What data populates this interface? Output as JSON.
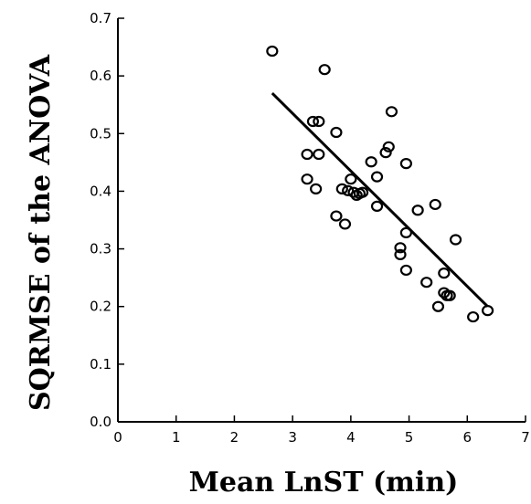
{
  "chart_data": {
    "type": "scatter",
    "title": "",
    "xlabel": "Mean LnST (min)",
    "ylabel": "SQRMSE of the ANOVA",
    "xlim": [
      0,
      7
    ],
    "ylim": [
      0,
      0.7
    ],
    "xticks": [
      0,
      1,
      2,
      3,
      4,
      5,
      6,
      7
    ],
    "yticks": [
      0.0,
      0.1,
      0.2,
      0.3,
      0.4,
      0.5,
      0.6,
      0.7
    ],
    "xtick_labels": [
      "0",
      "1",
      "2",
      "3",
      "4",
      "5",
      "6",
      "7"
    ],
    "ytick_labels": [
      "0.0",
      "0.1",
      "0.2",
      "0.3",
      "0.4",
      "0.5",
      "0.6",
      "0.7"
    ],
    "grid": false,
    "legend": "none",
    "marker": "open-circle",
    "color": "#000000",
    "points": [
      [
        2.65,
        0.643
      ],
      [
        3.55,
        0.611
      ],
      [
        3.35,
        0.521
      ],
      [
        3.45,
        0.521
      ],
      [
        3.75,
        0.502
      ],
      [
        4.7,
        0.538
      ],
      [
        3.25,
        0.464
      ],
      [
        3.45,
        0.464
      ],
      [
        4.35,
        0.451
      ],
      [
        4.6,
        0.467
      ],
      [
        4.65,
        0.477
      ],
      [
        4.95,
        0.448
      ],
      [
        4.45,
        0.425
      ],
      [
        3.25,
        0.421
      ],
      [
        3.4,
        0.404
      ],
      [
        3.85,
        0.404
      ],
      [
        3.95,
        0.401
      ],
      [
        4.0,
        0.421
      ],
      [
        4.05,
        0.398
      ],
      [
        4.1,
        0.393
      ],
      [
        4.15,
        0.396
      ],
      [
        4.2,
        0.398
      ],
      [
        4.45,
        0.374
      ],
      [
        5.15,
        0.367
      ],
      [
        5.45,
        0.377
      ],
      [
        3.75,
        0.357
      ],
      [
        3.9,
        0.343
      ],
      [
        4.95,
        0.328
      ],
      [
        4.85,
        0.302
      ],
      [
        4.85,
        0.29
      ],
      [
        5.8,
        0.316
      ],
      [
        4.95,
        0.263
      ],
      [
        5.3,
        0.242
      ],
      [
        5.6,
        0.258
      ],
      [
        5.6,
        0.224
      ],
      [
        5.65,
        0.219
      ],
      [
        5.7,
        0.219
      ],
      [
        5.5,
        0.2
      ],
      [
        6.1,
        0.182
      ],
      [
        6.35,
        0.193
      ]
    ],
    "fit_line": {
      "x": [
        2.65,
        6.35
      ],
      "y": [
        0.57,
        0.2
      ]
    }
  }
}
